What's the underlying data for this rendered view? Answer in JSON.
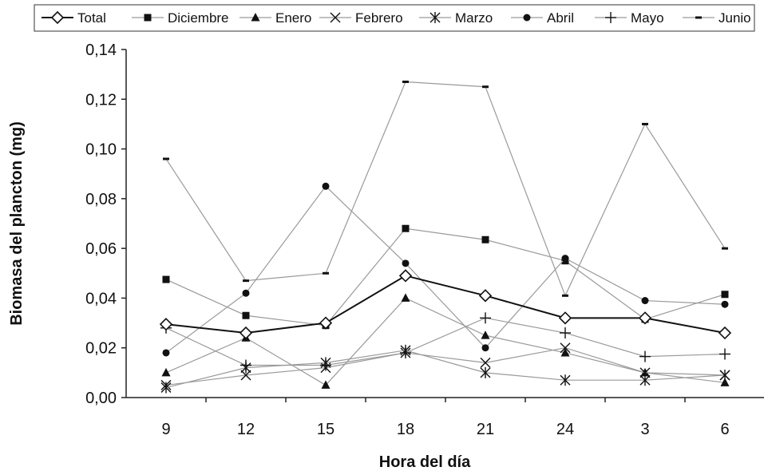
{
  "chart_data": {
    "type": "line",
    "title": "",
    "xlabel": "Hora del día",
    "ylabel": "Biomasa del plancton (mg)",
    "categories": [
      "9",
      "12",
      "15",
      "18",
      "21",
      "24",
      "3",
      "6"
    ],
    "ylim": [
      0,
      0.14
    ],
    "yticks": [
      "0,00",
      "0,02",
      "0,04",
      "0,06",
      "0,08",
      "0,10",
      "0,12",
      "0,14"
    ],
    "ytick_values": [
      0,
      0.02,
      0.04,
      0.06,
      0.08,
      0.1,
      0.12,
      0.14
    ],
    "grid": false,
    "legend_position": "top",
    "series": [
      {
        "name": "Total",
        "marker": "diamond-open",
        "line_color": "#111111",
        "line_width": "bold",
        "values": [
          0.0295,
          0.026,
          0.03,
          0.049,
          0.041,
          0.032,
          0.032,
          0.026
        ]
      },
      {
        "name": "Diciembre",
        "marker": "square",
        "line_color": "#9a9a9a",
        "values": [
          0.0475,
          0.033,
          0.029,
          0.068,
          0.0635,
          0.055,
          0.0315,
          0.0415
        ]
      },
      {
        "name": "Enero",
        "marker": "triangle",
        "line_color": "#9a9a9a",
        "values": [
          0.01,
          0.024,
          0.005,
          0.04,
          0.025,
          0.018,
          0.01,
          0.006
        ]
      },
      {
        "name": "Febrero",
        "marker": "x",
        "line_color": "#9a9a9a",
        "values": [
          0.005,
          0.009,
          0.012,
          0.018,
          0.014,
          0.02,
          0.01,
          0.009
        ]
      },
      {
        "name": "Marzo",
        "marker": "asterisk",
        "line_color": "#9a9a9a",
        "values": [
          0.004,
          0.012,
          0.014,
          0.019,
          0.01,
          0.007,
          0.007,
          0.009
        ]
      },
      {
        "name": "Abril",
        "marker": "circle",
        "line_color": "#9a9a9a",
        "values": [
          0.018,
          0.042,
          0.085,
          0.054,
          0.02,
          0.056,
          0.039,
          0.0375
        ]
      },
      {
        "name": "Mayo",
        "marker": "plus",
        "line_color": "#9a9a9a",
        "values": [
          0.028,
          0.013,
          0.013,
          0.018,
          0.032,
          0.026,
          0.0165,
          0.0175
        ]
      },
      {
        "name": "Junio",
        "marker": "dash",
        "line_color": "#9a9a9a",
        "values": [
          0.096,
          0.047,
          0.05,
          0.127,
          0.125,
          0.041,
          0.11,
          0.06
        ]
      }
    ]
  }
}
